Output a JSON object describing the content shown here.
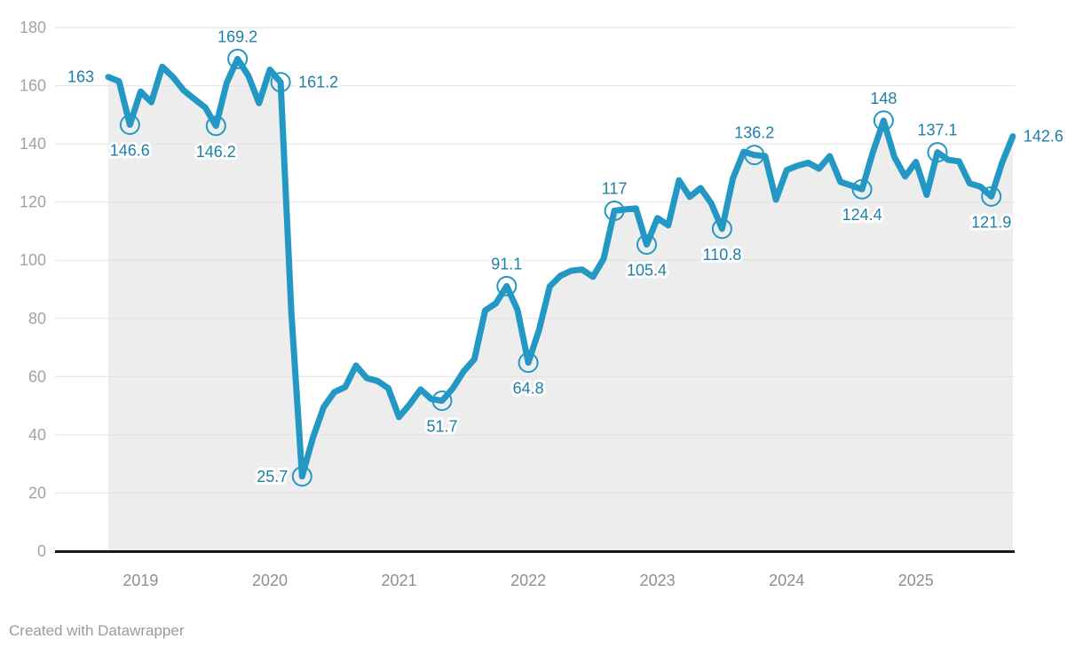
{
  "chart_data": {
    "type": "line",
    "title": "",
    "frequency": "monthly",
    "grid": true,
    "legend_position": "none",
    "months": [
      "2018-10",
      "2018-11",
      "2018-12",
      "2019-01",
      "2019-02",
      "2019-03",
      "2019-04",
      "2019-05",
      "2019-06",
      "2019-07",
      "2019-08",
      "2019-09",
      "2019-10",
      "2019-11",
      "2019-12",
      "2020-01",
      "2020-02",
      "2020-03",
      "2020-04",
      "2020-05",
      "2020-06",
      "2020-07",
      "2020-08",
      "2020-09",
      "2020-10",
      "2020-11",
      "2020-12",
      "2021-01",
      "2021-02",
      "2021-03",
      "2021-04",
      "2021-05",
      "2021-06",
      "2021-07",
      "2021-08",
      "2021-09",
      "2021-10",
      "2021-11",
      "2021-12",
      "2022-01",
      "2022-02",
      "2022-03",
      "2022-04",
      "2022-05",
      "2022-06",
      "2022-07",
      "2022-08",
      "2022-09",
      "2022-10",
      "2022-11",
      "2022-12",
      "2023-01",
      "2023-02",
      "2023-03",
      "2023-04",
      "2023-05",
      "2023-06",
      "2023-07",
      "2023-08",
      "2023-09",
      "2023-10",
      "2023-11",
      "2023-12",
      "2024-01",
      "2024-02",
      "2024-03",
      "2024-04",
      "2024-05",
      "2024-06",
      "2024-07",
      "2024-08",
      "2024-09",
      "2024-10",
      "2024-11",
      "2024-12",
      "2025-01",
      "2025-02",
      "2025-03",
      "2025-04",
      "2025-05",
      "2025-06",
      "2025-07",
      "2025-08",
      "2025-09",
      "2025-10"
    ],
    "values": [
      163,
      161.5,
      146.6,
      158,
      154.3,
      166.5,
      163,
      158.4,
      155.4,
      152.5,
      146.2,
      161,
      169.2,
      163.5,
      154,
      165.5,
      161.2,
      82,
      25.7,
      39,
      49.5,
      54.7,
      56.4,
      63.8,
      59.5,
      58.5,
      56,
      46.1,
      50.5,
      55.6,
      52.3,
      51.7,
      56,
      61.8,
      66,
      82.7,
      85.2,
      91.1,
      83,
      64.8,
      76,
      91,
      94.7,
      96.4,
      96.8,
      94.3,
      100.5,
      117,
      117.5,
      117.8,
      105.4,
      114.5,
      112,
      127.5,
      121.8,
      124.8,
      119.5,
      110.8,
      128,
      137.3,
      136.2,
      135.8,
      120.8,
      131,
      132.5,
      133.5,
      131.5,
      135.8,
      126.9,
      125.7,
      124.4,
      137,
      148,
      135.5,
      128.8,
      133.8,
      122.5,
      137.1,
      134.5,
      134,
      126.4,
      125.3,
      121.9,
      133.5,
      142.6
    ],
    "y_axis": {
      "range": [
        0,
        180
      ],
      "ticks": [
        0,
        20,
        40,
        60,
        80,
        100,
        120,
        140,
        160,
        180
      ]
    },
    "x_axis": {
      "year_ticks": [
        {
          "label": "2019",
          "m": 3
        },
        {
          "label": "2020",
          "m": 15
        },
        {
          "label": "2021",
          "m": 27
        },
        {
          "label": "2022",
          "m": 39
        },
        {
          "label": "2023",
          "m": 51
        },
        {
          "label": "2024",
          "m": 63
        },
        {
          "label": "2025",
          "m": 75
        }
      ]
    },
    "labeled_points": [
      {
        "m": 0,
        "text": "163",
        "pos": "left",
        "circle": false
      },
      {
        "m": 2,
        "text": "146.6",
        "pos": "below",
        "circle": true
      },
      {
        "m": 10,
        "text": "146.2",
        "pos": "below",
        "circle": true
      },
      {
        "m": 12,
        "text": "169.2",
        "pos": "above",
        "circle": true
      },
      {
        "m": 16,
        "text": "161.2",
        "pos": "right",
        "circle": true
      },
      {
        "m": 18,
        "text": "25.7",
        "pos": "left",
        "circle": true
      },
      {
        "m": 31,
        "text": "51.7",
        "pos": "below",
        "circle": true
      },
      {
        "m": 37,
        "text": "91.1",
        "pos": "above",
        "circle": true
      },
      {
        "m": 39,
        "text": "64.8",
        "pos": "below",
        "circle": true
      },
      {
        "m": 47,
        "text": "117",
        "pos": "above",
        "circle": true
      },
      {
        "m": 50,
        "text": "105.4",
        "pos": "below",
        "circle": true
      },
      {
        "m": 57,
        "text": "110.8",
        "pos": "below",
        "circle": true
      },
      {
        "m": 60,
        "text": "136.2",
        "pos": "above",
        "circle": true
      },
      {
        "m": 70,
        "text": "124.4",
        "pos": "below",
        "circle": true
      },
      {
        "m": 72,
        "text": "148",
        "pos": "above",
        "circle": true
      },
      {
        "m": 77,
        "text": "137.1",
        "pos": "above",
        "circle": true
      },
      {
        "m": 82,
        "text": "121.9",
        "pos": "below",
        "circle": true
      },
      {
        "m": 84,
        "text": "142.6",
        "pos": "right",
        "circle": false
      }
    ],
    "colors": {
      "line": "#2398c4",
      "value_label": "#1d7fa7",
      "area": "#ededed",
      "grid": "#e2e2e2",
      "axis": "#191919",
      "y_axis_text": "#a3a3a3",
      "x_axis_text": "#8f8f8f"
    }
  },
  "attribution": "Created with Datawrapper"
}
